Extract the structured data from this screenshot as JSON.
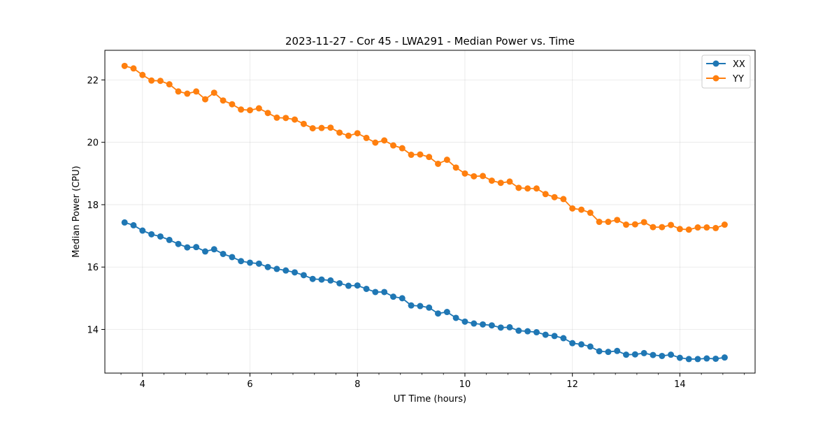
{
  "chart_data": {
    "type": "line",
    "title": "2023-11-27 - Cor 45 - LWA291 - Median Power vs. Time",
    "xlabel": "UT Time (hours)",
    "ylabel": "Median Power (CPU)",
    "xlim": [
      3.3,
      15.4
    ],
    "ylim": [
      12.6,
      22.95
    ],
    "xticks": [
      4,
      6,
      8,
      10,
      12,
      14
    ],
    "xtick_labels": [
      "4",
      "6",
      "8",
      "10",
      "12",
      "14"
    ],
    "yticks": [
      14,
      16,
      18,
      20,
      22
    ],
    "ytick_labels": [
      "14",
      "16",
      "18",
      "20",
      "22"
    ],
    "grid": true,
    "legend_position": "top-right",
    "x": [
      3.667,
      3.833,
      4.0,
      4.167,
      4.333,
      4.5,
      4.667,
      4.833,
      5.0,
      5.167,
      5.333,
      5.5,
      5.667,
      5.833,
      6.0,
      6.167,
      6.333,
      6.5,
      6.667,
      6.833,
      7.0,
      7.167,
      7.333,
      7.5,
      7.667,
      7.833,
      8.0,
      8.167,
      8.333,
      8.5,
      8.667,
      8.833,
      9.0,
      9.167,
      9.333,
      9.5,
      9.667,
      9.833,
      10.0,
      10.167,
      10.333,
      10.5,
      10.667,
      10.833,
      11.0,
      11.167,
      11.333,
      11.5,
      11.667,
      11.833,
      12.0,
      12.167,
      12.333,
      12.5,
      12.667,
      12.833,
      13.0,
      13.167,
      13.333,
      13.5,
      13.667,
      13.833,
      14.0,
      14.167,
      14.333,
      14.5,
      14.667,
      14.833
    ],
    "series": [
      {
        "name": "XX",
        "color": "#1f77b4",
        "values": [
          17.43,
          17.34,
          17.17,
          17.05,
          16.98,
          16.87,
          16.74,
          16.63,
          16.64,
          16.5,
          16.57,
          16.42,
          16.32,
          16.19,
          16.14,
          16.11,
          16.0,
          15.94,
          15.89,
          15.83,
          15.74,
          15.62,
          15.6,
          15.57,
          15.48,
          15.4,
          15.41,
          15.3,
          15.2,
          15.2,
          15.05,
          15.0,
          14.77,
          14.75,
          14.7,
          14.51,
          14.56,
          14.37,
          14.25,
          14.19,
          14.16,
          14.13,
          14.06,
          14.07,
          13.96,
          13.94,
          13.91,
          13.83,
          13.79,
          13.72,
          13.56,
          13.52,
          13.45,
          13.3,
          13.28,
          13.31,
          13.19,
          13.2,
          13.24,
          13.18,
          13.15,
          13.19,
          13.09,
          13.05,
          13.05,
          13.07,
          13.06,
          13.1
        ]
      },
      {
        "name": "YY",
        "color": "#ff7f0e",
        "values": [
          22.45,
          22.37,
          22.16,
          21.98,
          21.97,
          21.86,
          21.63,
          21.56,
          21.63,
          21.38,
          21.59,
          21.34,
          21.22,
          21.05,
          21.03,
          21.09,
          20.94,
          20.79,
          20.78,
          20.73,
          20.59,
          20.45,
          20.46,
          20.47,
          20.31,
          20.21,
          20.29,
          20.14,
          19.99,
          20.06,
          19.9,
          19.81,
          19.6,
          19.61,
          19.53,
          19.31,
          19.44,
          19.19,
          19.0,
          18.91,
          18.92,
          18.77,
          18.7,
          18.74,
          18.54,
          18.52,
          18.52,
          18.34,
          18.24,
          18.18,
          17.88,
          17.84,
          17.74,
          17.45,
          17.45,
          17.51,
          17.36,
          17.37,
          17.44,
          17.28,
          17.28,
          17.35,
          17.22,
          17.2,
          17.27,
          17.27,
          17.25,
          17.36
        ]
      }
    ]
  }
}
